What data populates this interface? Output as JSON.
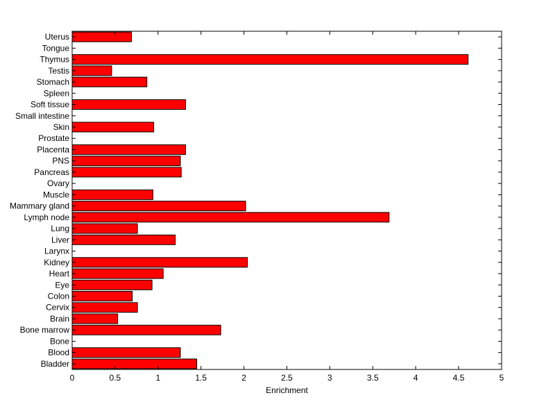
{
  "chart_data": {
    "type": "bar",
    "orientation": "horizontal",
    "title": "",
    "xlabel": "Enrichment",
    "ylabel": "",
    "xlim": [
      0,
      5
    ],
    "xticks": [
      0,
      0.5,
      1,
      1.5,
      2,
      2.5,
      3,
      3.5,
      4,
      4.5,
      5
    ],
    "xtick_labels": [
      "0",
      "0.5",
      "1",
      "1.5",
      "2",
      "2.5",
      "3",
      "3.5",
      "4",
      "4.5",
      "5"
    ],
    "grid": false,
    "legend": "none",
    "bar_color": "#ff0000",
    "bar_edge_color": "#000000",
    "categories": [
      "Uterus",
      "Tongue",
      "Thymus",
      "Testis",
      "Stomach",
      "Spleen",
      "Soft tissue",
      "Small intestine",
      "Skin",
      "Prostate",
      "Placenta",
      "PNS",
      "Pancreas",
      "Ovary",
      "Muscle",
      "Mammary gland",
      "Lymph node",
      "Lung",
      "Liver",
      "Larynx",
      "Kidney",
      "Heart",
      "Eye",
      "Colon",
      "Cervix",
      "Brain",
      "Bone marrow",
      "Bone",
      "Blood",
      "Bladder"
    ],
    "values": [
      0.69,
      0,
      4.61,
      0.46,
      0.87,
      0,
      1.32,
      0,
      0.95,
      0,
      1.32,
      1.26,
      1.27,
      0,
      0.94,
      2.02,
      3.69,
      0.76,
      1.2,
      0,
      2.04,
      1.06,
      0.93,
      0.7,
      0.76,
      0.53,
      1.73,
      0,
      1.26,
      1.45
    ]
  }
}
